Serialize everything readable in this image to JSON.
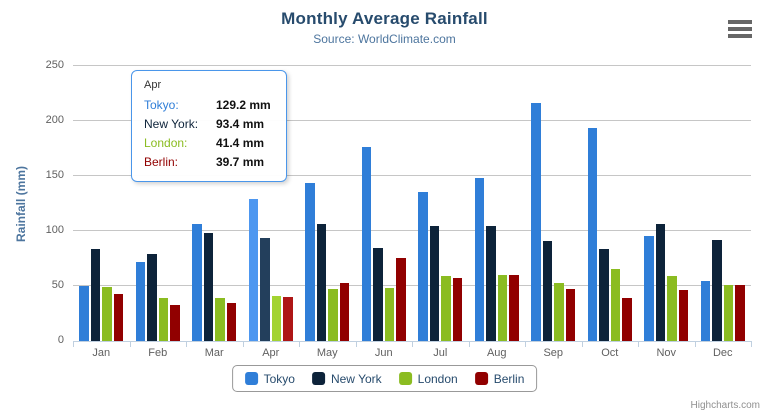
{
  "header": {
    "title": "Monthly Average Rainfall",
    "subtitle": "Source: WorldClimate.com"
  },
  "credits_label": "Highcharts.com",
  "chart_data": {
    "type": "bar",
    "title": "Monthly Average Rainfall",
    "subtitle": "Source: WorldClimate.com",
    "xlabel": "",
    "ylabel": "Rainfall (mm)",
    "ylim": [
      0,
      250
    ],
    "ytick_step": 50,
    "yticks": [
      0,
      50,
      100,
      150,
      200,
      250
    ],
    "grid": true,
    "legend_position": "bottom",
    "categories": [
      "Jan",
      "Feb",
      "Mar",
      "Apr",
      "May",
      "Jun",
      "Jul",
      "Aug",
      "Sep",
      "Oct",
      "Nov",
      "Dec"
    ],
    "series": [
      {
        "name": "Tokyo",
        "color": "#2f7ed8",
        "hover_color": "#4d97f0",
        "values": [
          49.9,
          71.5,
          106.4,
          129.2,
          144.0,
          176.0,
          135.6,
          148.5,
          216.4,
          194.1,
          95.6,
          54.4
        ]
      },
      {
        "name": "New York",
        "color": "#0d233a",
        "hover_color": "#233f5c",
        "values": [
          83.6,
          78.8,
          98.5,
          93.4,
          106.0,
          84.5,
          105.0,
          104.3,
          91.2,
          83.5,
          106.6,
          92.3
        ]
      },
      {
        "name": "London",
        "color": "#8bbc21",
        "hover_color": "#a3d331",
        "values": [
          48.9,
          38.8,
          39.3,
          41.4,
          47.0,
          48.3,
          59.0,
          59.6,
          52.4,
          65.2,
          59.3,
          51.2
        ]
      },
      {
        "name": "Berlin",
        "color": "#910000",
        "hover_color": "#ae1616",
        "values": [
          42.4,
          33.2,
          34.5,
          39.7,
          52.6,
          75.5,
          57.4,
          60.4,
          47.6,
          39.1,
          46.8,
          51.1
        ]
      }
    ],
    "hovered_category": "Apr"
  },
  "tooltip": {
    "header": "Apr",
    "rows": [
      {
        "label": "Tokyo:",
        "value": "129.2 mm",
        "color": "#2f7ed8"
      },
      {
        "label": "New York:",
        "value": "93.4 mm",
        "color": "#0d233a"
      },
      {
        "label": "London:",
        "value": "41.4 mm",
        "color": "#8bbc21"
      },
      {
        "label": "Berlin:",
        "value": "39.7 mm",
        "color": "#910000"
      }
    ]
  }
}
